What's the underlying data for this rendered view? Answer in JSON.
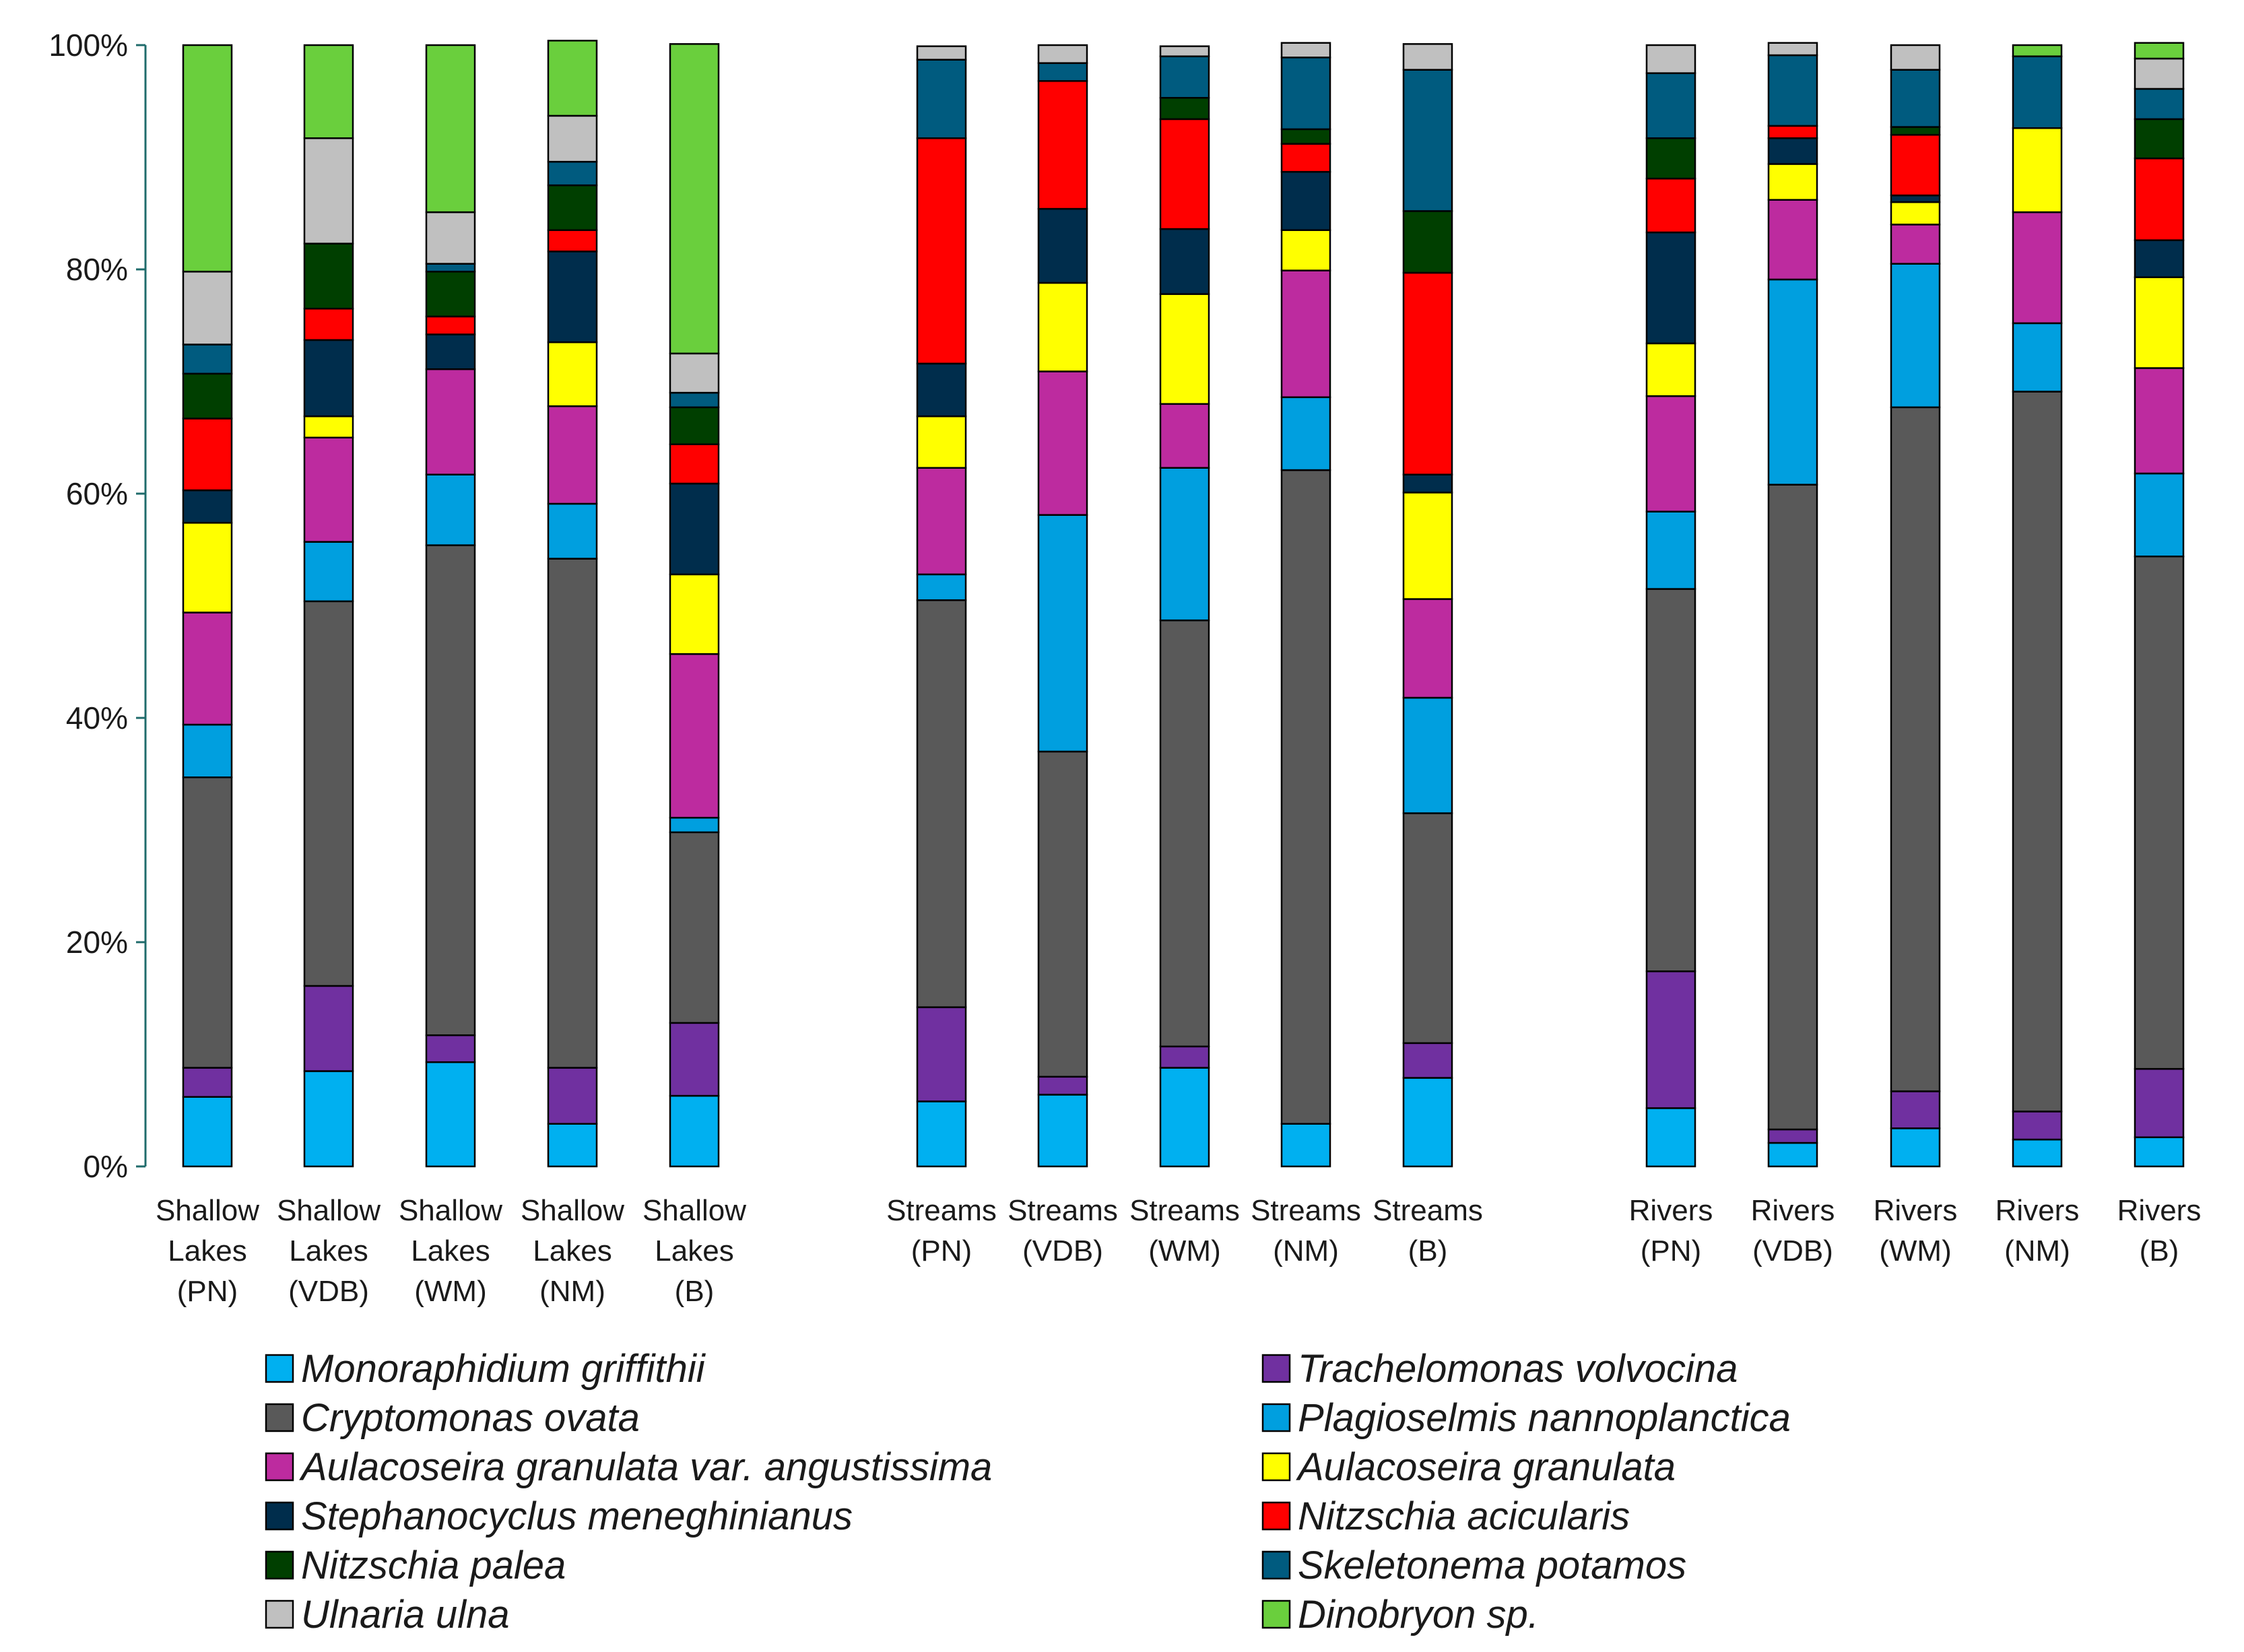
{
  "chart_data": {
    "type": "bar",
    "stacked": true,
    "percent": true,
    "title": "",
    "xlabel": "",
    "ylabel": "",
    "ylim": [
      0,
      100
    ],
    "yticks": [
      "0%",
      "20%",
      "40%",
      "60%",
      "80%",
      "100%"
    ],
    "groups": [
      "Shallow Lakes",
      "Streams",
      "Rivers"
    ],
    "categories": [
      "Shallow Lakes (PN)",
      "Shallow Lakes (VDB)",
      "Shallow Lakes (WM)",
      "Shallow Lakes (NM)",
      "Shallow Lakes (B)",
      "Streams (PN)",
      "Streams (VDB)",
      "Streams (WM)",
      "Streams (NM)",
      "Streams (B)",
      "Rivers (PN)",
      "Rivers (VDB)",
      "Rivers (WM)",
      "Rivers (NM)",
      "Rivers (B)"
    ],
    "category_labels": [
      [
        "Shallow",
        "Lakes",
        "(PN)"
      ],
      [
        "Shallow",
        "Lakes",
        "(VDB)"
      ],
      [
        "Shallow",
        "Lakes",
        "(WM)"
      ],
      [
        "Shallow",
        "Lakes",
        "(NM)"
      ],
      [
        "Shallow",
        "Lakes",
        "(B)"
      ],
      [
        "Streams",
        "(PN)"
      ],
      [
        "Streams",
        "(VDB)"
      ],
      [
        "Streams",
        "(WM)"
      ],
      [
        "Streams",
        "(NM)"
      ],
      [
        "Streams",
        "(B)"
      ],
      [
        "Rivers",
        "(PN)"
      ],
      [
        "Rivers",
        "(VDB)"
      ],
      [
        "Rivers",
        "(WM)"
      ],
      [
        "Rivers",
        "(NM)"
      ],
      [
        "Rivers",
        "(B)"
      ]
    ],
    "series": [
      {
        "name": "Monoraphidium griffithii",
        "color": "#00B0F0",
        "values": [
          6.2,
          8.5,
          9.3,
          3.8,
          6.3,
          5.8,
          6.4,
          8.8,
          3.8,
          7.9,
          5.2,
          2.1,
          3.4,
          2.4,
          2.6
        ]
      },
      {
        "name": "Trachelomonas volvocina",
        "color": "#7030A0",
        "values": [
          2.6,
          7.6,
          2.4,
          5.0,
          6.5,
          8.4,
          1.6,
          1.9,
          0.0,
          3.1,
          12.2,
          1.2,
          3.3,
          2.5,
          6.1
        ]
      },
      {
        "name": "Cryptomonas ovata",
        "color": "#595959",
        "values": [
          25.9,
          34.3,
          43.7,
          45.4,
          17.0,
          36.3,
          29.0,
          38.0,
          58.3,
          20.5,
          34.1,
          57.5,
          61.0,
          64.2,
          45.7
        ]
      },
      {
        "name": "Plagioselmis nannoplanctica",
        "color": "#009FDF",
        "values": [
          4.7,
          5.3,
          6.3,
          4.9,
          1.3,
          2.3,
          21.1,
          13.6,
          6.5,
          10.3,
          6.9,
          18.3,
          12.8,
          6.1,
          7.4
        ]
      },
      {
        "name": "Aulacoseira granulata var. angustissima",
        "color": "#BD2B9F",
        "values": [
          10.0,
          9.3,
          9.4,
          8.7,
          14.6,
          9.5,
          12.8,
          5.7,
          11.3,
          8.8,
          10.3,
          7.1,
          3.5,
          9.9,
          9.4
        ]
      },
      {
        "name": "Aulacoseira granulata",
        "color": "#FFFF00",
        "values": [
          8.0,
          1.9,
          0.0,
          5.7,
          7.1,
          4.6,
          7.9,
          9.8,
          3.6,
          9.5,
          4.7,
          3.2,
          2.0,
          7.5,
          8.1
        ]
      },
      {
        "name": "Stephanocyclus meneghinianus",
        "color": "#002D4C",
        "values": [
          2.9,
          6.8,
          3.1,
          8.1,
          8.1,
          4.7,
          6.6,
          5.8,
          5.2,
          1.6,
          9.9,
          2.3,
          0.6,
          0.0,
          3.3
        ]
      },
      {
        "name": "Nitzschia acicularis",
        "color": "#FF0000",
        "values": [
          6.4,
          2.8,
          1.6,
          1.9,
          3.5,
          20.1,
          11.4,
          9.8,
          2.5,
          18.0,
          4.8,
          1.1,
          5.4,
          0.0,
          7.3
        ]
      },
      {
        "name": "Nitzschia palea",
        "color": "#003F00",
        "values": [
          4.0,
          5.8,
          4.0,
          4.0,
          3.3,
          0.0,
          0.0,
          1.9,
          1.3,
          5.5,
          3.6,
          0.0,
          0.7,
          0.0,
          3.5
        ]
      },
      {
        "name": "Skeletonema potamos",
        "color": "#005B7F",
        "values": [
          2.6,
          0.0,
          0.7,
          2.1,
          1.3,
          7.0,
          1.6,
          3.7,
          6.4,
          12.6,
          5.8,
          6.3,
          5.1,
          6.4,
          2.7
        ]
      },
      {
        "name": "Ulnaria ulna",
        "color": "#C0C0C0",
        "values": [
          6.5,
          9.4,
          4.6,
          4.1,
          3.5,
          1.2,
          1.6,
          0.9,
          1.3,
          2.3,
          2.5,
          1.1,
          2.2,
          0.0,
          2.7
        ]
      },
      {
        "name": "Dinobryon sp.",
        "color": "#6ACF3D",
        "values": [
          20.2,
          8.3,
          14.9,
          6.7,
          27.6,
          0.0,
          0.0,
          0.0,
          0.0,
          0.0,
          0.0,
          0.0,
          0.0,
          1.0,
          1.4
        ]
      }
    ]
  }
}
